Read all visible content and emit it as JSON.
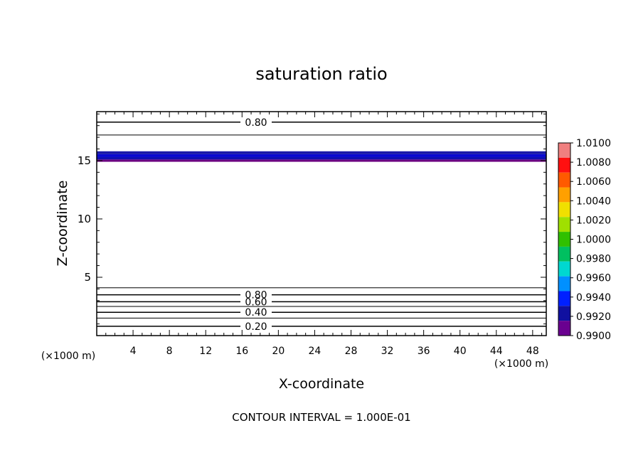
{
  "chart_data": {
    "type": "contour",
    "title": "saturation ratio",
    "xlabel": "X-coordinate",
    "ylabel": "Z-coordinate",
    "x_unit": "(×1000 m)",
    "z_unit": "(×1000 m)",
    "xlim": [
      0,
      49.5
    ],
    "ylim": [
      0,
      19.2
    ],
    "x_ticks": [
      4,
      8,
      12,
      16,
      20,
      24,
      28,
      32,
      36,
      40,
      44,
      48
    ],
    "y_ticks": [
      5,
      10,
      15
    ],
    "footer": "CONTOUR INTERVAL = 1.000E-01",
    "contours": [
      {
        "z": 18.3,
        "label": "0.80"
      },
      {
        "z": 17.2,
        "label": ""
      },
      {
        "z": 4.1,
        "label": ""
      },
      {
        "z": 3.5,
        "label": "0.80"
      },
      {
        "z": 2.9,
        "label": "0.60"
      },
      {
        "z": 2.5,
        "label": ""
      },
      {
        "z": 2.0,
        "label": "0.40"
      },
      {
        "z": 1.5,
        "label": ""
      },
      {
        "z": 0.8,
        "label": "0.20"
      }
    ],
    "shaded_band": {
      "z_bottom": 14.9,
      "z_top": 15.8,
      "layers": [
        {
          "z0": 14.9,
          "z1": 15.1,
          "color": "#6a0080"
        },
        {
          "z0": 15.1,
          "z1": 15.3,
          "color": "#1010b0"
        },
        {
          "z0": 15.3,
          "z1": 15.55,
          "color": "#0a0ad0"
        },
        {
          "z0": 15.55,
          "z1": 15.8,
          "color": "#1a1aa8"
        }
      ]
    },
    "colorbar": {
      "labels": [
        "1.0100",
        "1.0080",
        "1.0060",
        "1.0040",
        "1.0020",
        "1.0000",
        "0.9980",
        "0.9960",
        "0.9940",
        "0.9920",
        "0.9900"
      ],
      "colors": [
        "#f08080",
        "#ff1010",
        "#ff5a00",
        "#ffa000",
        "#f0e000",
        "#a0e000",
        "#30c000",
        "#00c060",
        "#00d8d0",
        "#0090ff",
        "#0020ff",
        "#1010a0",
        "#6a0090"
      ]
    }
  }
}
